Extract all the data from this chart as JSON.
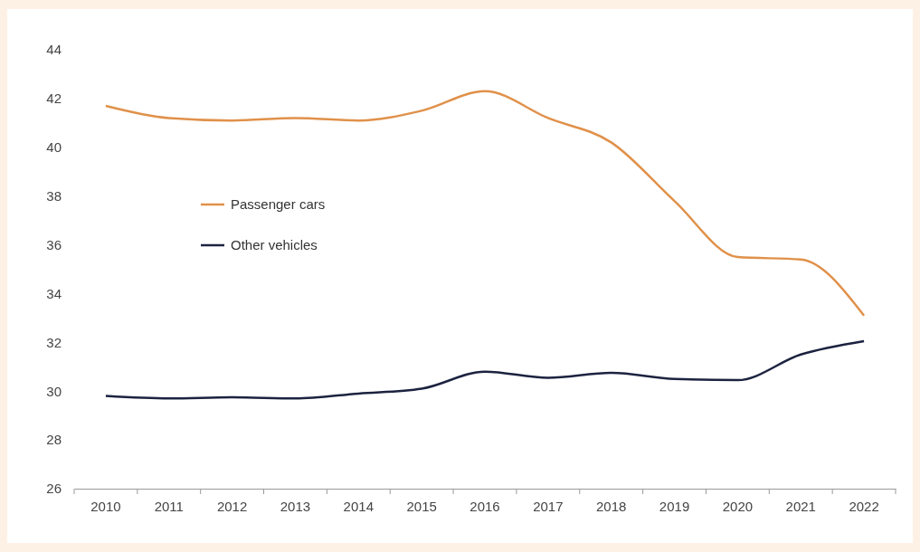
{
  "chart_data": {
    "type": "line",
    "categories": [
      "2010",
      "2011",
      "2012",
      "2013",
      "2014",
      "2015",
      "2016",
      "2017",
      "2018",
      "2019",
      "2020",
      "2021",
      "2022"
    ],
    "series": [
      {
        "name": "Passenger cars",
        "color": "#e0914a",
        "values": [
          41.7,
          41.2,
          41.1,
          41.2,
          41.1,
          41.5,
          42.3,
          41.2,
          40.2,
          37.8,
          35.5,
          35.4,
          33.1
        ]
      },
      {
        "name": "Other vehicles",
        "color": "#1c2340",
        "values": [
          29.8,
          29.7,
          29.75,
          29.7,
          29.9,
          30.1,
          30.8,
          30.55,
          30.75,
          30.5,
          30.45,
          31.5,
          32.05
        ]
      }
    ],
    "ylim": [
      26,
      44
    ],
    "yticks": [
      26,
      28,
      30,
      32,
      34,
      36,
      38,
      40,
      42,
      44
    ],
    "grid": false,
    "legend": "left",
    "marker": "none",
    "line_style": "solid"
  }
}
